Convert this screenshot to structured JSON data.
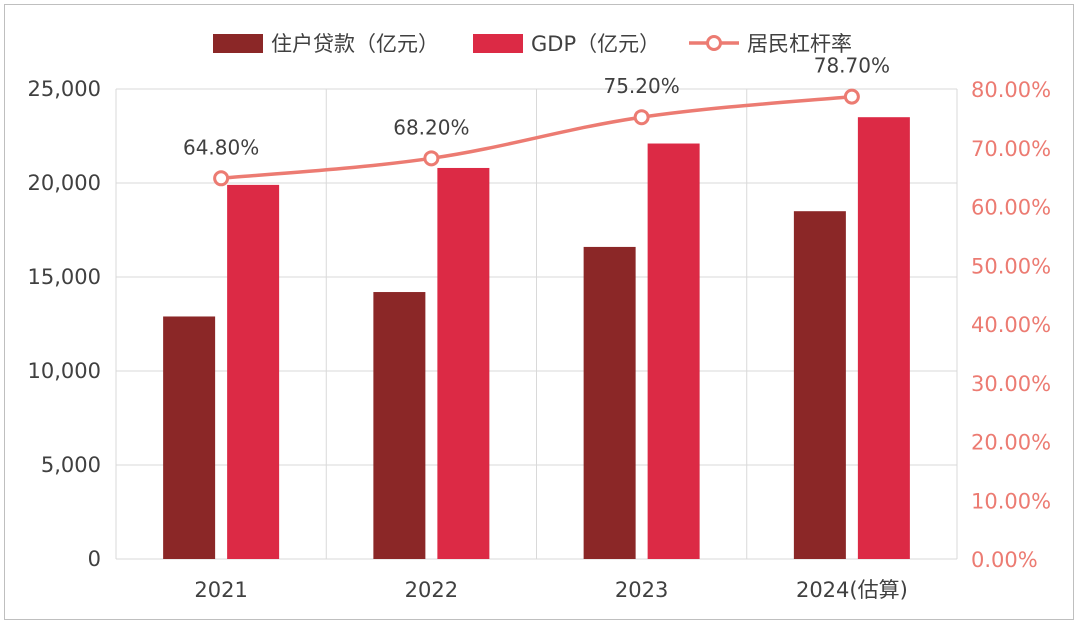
{
  "chart_data": {
    "type": "bar",
    "categories": [
      "2021",
      "2022",
      "2023",
      "2024(估算)"
    ],
    "series": [
      {
        "name": "住户贷款（亿元）",
        "type": "bar",
        "axis": "left",
        "values": [
          12900,
          14200,
          16600,
          18500
        ]
      },
      {
        "name": "GDP（亿元）",
        "type": "bar",
        "axis": "left",
        "values": [
          19900,
          20800,
          22100,
          23500
        ]
      },
      {
        "name": "居民杠杆率",
        "type": "line",
        "axis": "right",
        "values": [
          64.8,
          68.2,
          75.2,
          78.7
        ],
        "labels": [
          "64.80%",
          "68.20%",
          "75.20%",
          "78.70%"
        ]
      }
    ],
    "left_axis": {
      "ticks": [
        "0",
        "5,000",
        "10,000",
        "15,000",
        "20,000",
        "25,000"
      ],
      "min": 0,
      "max": 25000,
      "step": 5000
    },
    "right_axis": {
      "ticks": [
        "0.00%",
        "10.00%",
        "20.00%",
        "30.00%",
        "40.00%",
        "50.00%",
        "60.00%",
        "70.00%",
        "80.00%"
      ],
      "min": 0,
      "max": 80,
      "step": 10
    },
    "legend_position": "top",
    "grid": true,
    "colors": {
      "loan": "#8b2727",
      "gdp": "#dc2a45",
      "line": "#ec7b72",
      "right_axis_text": "#ec7b72",
      "axis_text": "#404040",
      "grid": "#d9d9d9"
    }
  }
}
